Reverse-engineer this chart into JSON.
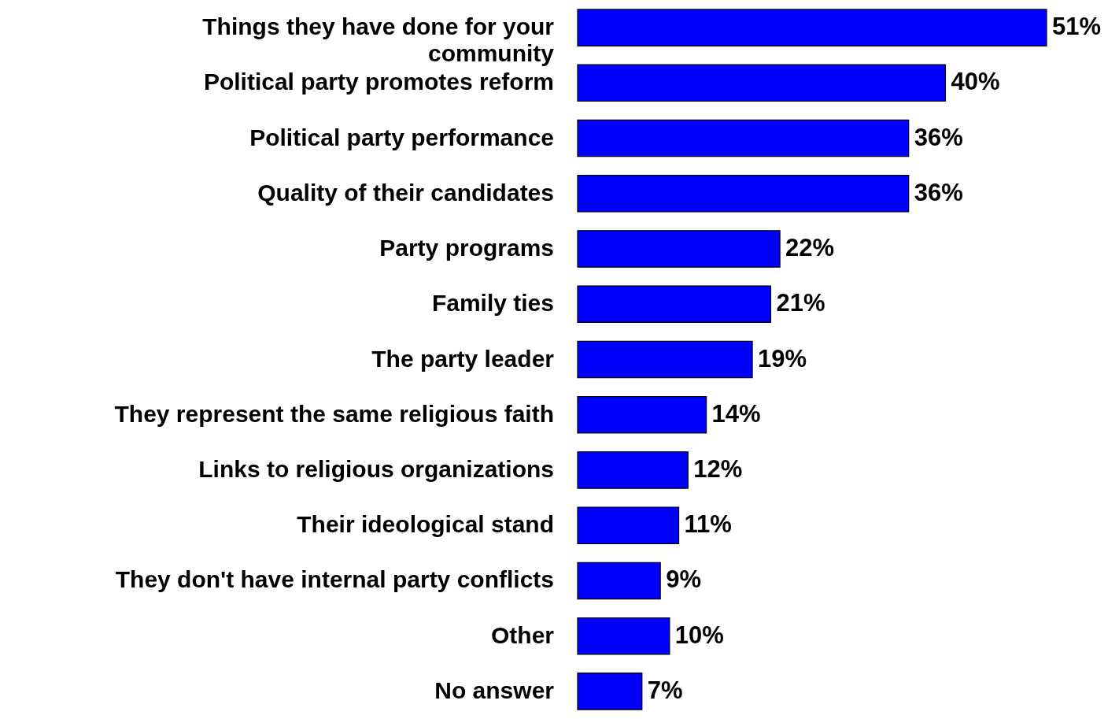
{
  "chart_data": {
    "type": "bar",
    "orientation": "horizontal",
    "categories": [
      "Things they have done for your\ncommunity",
      "Political party promotes reform",
      "Political party performance",
      "Quality of their candidates",
      "Party programs",
      "Family ties",
      "The party leader",
      "They represent the same religious faith",
      "Links to religious organizations",
      "Their ideological stand",
      "They don't have internal party conflicts",
      "Other",
      "No answer"
    ],
    "values": [
      51,
      40,
      36,
      36,
      22,
      21,
      19,
      14,
      12,
      11,
      9,
      10,
      7
    ],
    "value_labels": [
      "51%",
      "40%",
      "36%",
      "36%",
      "22%",
      "21%",
      "19%",
      "14%",
      "12%",
      "11%",
      "9%",
      "10%",
      "7%"
    ],
    "color": "#0000ff",
    "grid": false
  }
}
